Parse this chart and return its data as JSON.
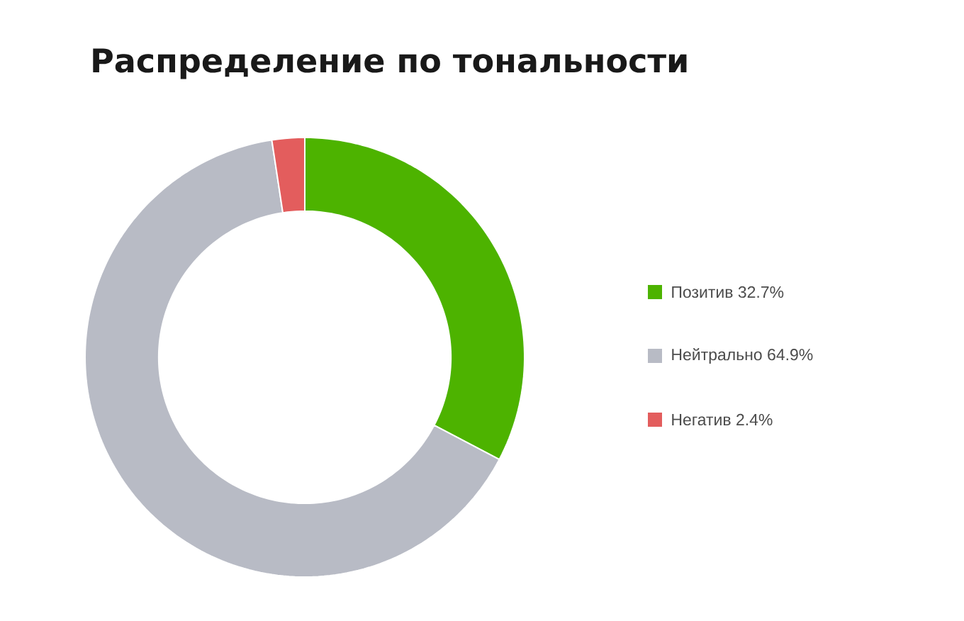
{
  "chart_data": {
    "type": "donut",
    "title": "Распределение по тональности",
    "categories": [
      "Позитив",
      "Нейтрально",
      "Негатив"
    ],
    "values": [
      32.7,
      64.9,
      2.4
    ],
    "value_labels": [
      "32.7%",
      "64.9%",
      "2.4%"
    ],
    "colors": [
      "#4db300",
      "#b8bbc5",
      "#e35d5d"
    ],
    "legend": "right"
  }
}
